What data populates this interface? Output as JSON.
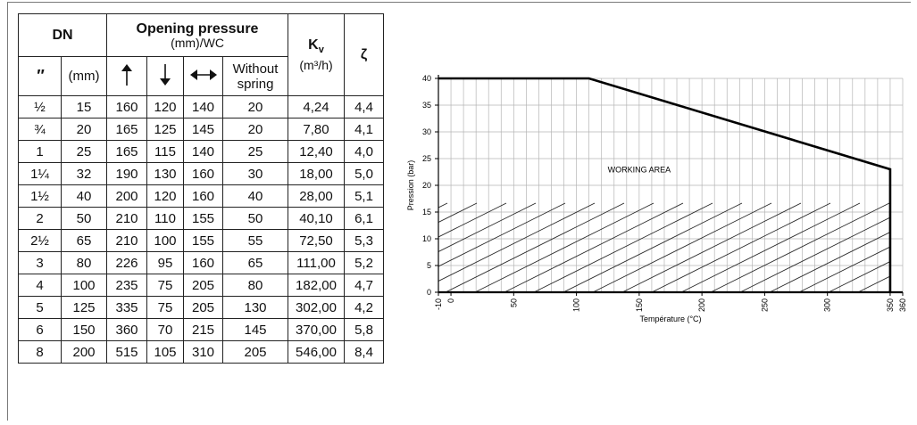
{
  "table": {
    "header": {
      "dn": "DN",
      "opening_pressure": "Opening pressure",
      "opening_unit": "(mm)/WC",
      "kv_label": "K",
      "kv_sub": "v",
      "kv_unit": "(m³/h)",
      "zeta": "ζ",
      "inch": "″",
      "mm": "(mm)",
      "up_icon": "arrow-up-icon",
      "down_icon": "arrow-down-icon",
      "horizontal_icon": "arrow-left-right-icon",
      "without_spring_1": "Without",
      "without_spring_2": "spring"
    },
    "rows": [
      [
        "½",
        "15",
        "160",
        "120",
        "140",
        "20",
        "4,24",
        "4,4"
      ],
      [
        "¾",
        "20",
        "165",
        "125",
        "145",
        "20",
        "7,80",
        "4,1"
      ],
      [
        "1",
        "25",
        "165",
        "115",
        "140",
        "25",
        "12,40",
        "4,0"
      ],
      [
        "1¼",
        "32",
        "190",
        "130",
        "160",
        "30",
        "18,00",
        "5,0"
      ],
      [
        "1½",
        "40",
        "200",
        "120",
        "160",
        "40",
        "28,00",
        "5,1"
      ],
      [
        "2",
        "50",
        "210",
        "110",
        "155",
        "50",
        "40,10",
        "6,1"
      ],
      [
        "2½",
        "65",
        "210",
        "100",
        "155",
        "55",
        "72,50",
        "5,3"
      ],
      [
        "3",
        "80",
        "226",
        "95",
        "160",
        "65",
        "111,00",
        "5,2"
      ],
      [
        "4",
        "100",
        "235",
        "75",
        "205",
        "80",
        "182,00",
        "4,7"
      ],
      [
        "5",
        "125",
        "335",
        "75",
        "205",
        "130",
        "302,00",
        "4,2"
      ],
      [
        "6",
        "150",
        "360",
        "70",
        "215",
        "145",
        "370,00",
        "5,8"
      ],
      [
        "8",
        "200",
        "515",
        "105",
        "310",
        "205",
        "546,00",
        "8,4"
      ]
    ]
  },
  "chart_data": {
    "type": "area",
    "xlabel": "Température (°C)",
    "ylabel": "Pression (bar)",
    "annotation": "WORKING AREA",
    "xlim": [
      -10,
      360
    ],
    "ylim": [
      0,
      40
    ],
    "x_ticks": [
      "-10",
      "0",
      "50",
      "100",
      "150",
      "200",
      "250",
      "300",
      "350",
      "360"
    ],
    "x_tick_values": [
      -10,
      0,
      50,
      100,
      150,
      200,
      250,
      300,
      350,
      360
    ],
    "y_ticks": [
      "0",
      "5",
      "10",
      "15",
      "20",
      "25",
      "30",
      "35",
      "40"
    ],
    "y_tick_values": [
      0,
      5,
      10,
      15,
      20,
      25,
      30,
      35,
      40
    ],
    "grid": true,
    "boundary": {
      "x": [
        -10,
        110,
        350,
        350
      ],
      "y": [
        40,
        40,
        23,
        0
      ]
    }
  }
}
